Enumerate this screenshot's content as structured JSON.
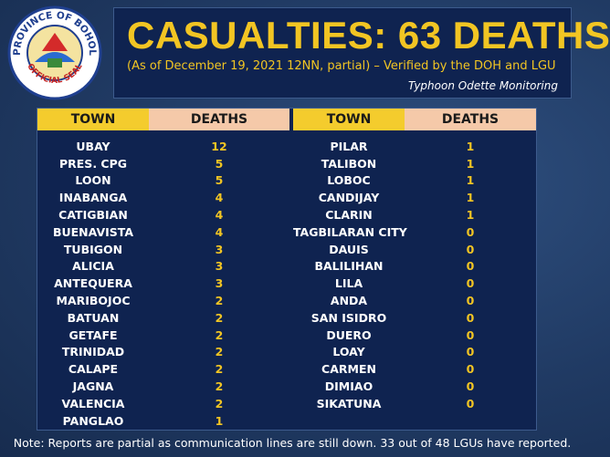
{
  "seal": {
    "top_text": "PROVINCE OF BOHOL",
    "bottom_text": "OFFICIAL SEAL"
  },
  "header": {
    "title_prefix": "CASUALTIES:",
    "title_count": "63 DEATHS",
    "subtitle": "(As of December 19, 2021 12NN, partial) – Verified by the DOH and LGU",
    "monitoring": "Typhoon Odette Monitoring"
  },
  "table": {
    "col_town": "TOWN",
    "col_deaths": "DEATHS",
    "left_rows": [
      {
        "town": "UBAY",
        "deaths": "12"
      },
      {
        "town": "PRES. CPG",
        "deaths": "5"
      },
      {
        "town": "LOON",
        "deaths": "5"
      },
      {
        "town": "INABANGA",
        "deaths": "4"
      },
      {
        "town": "CATIGBIAN",
        "deaths": "4"
      },
      {
        "town": "BUENAVISTA",
        "deaths": "4"
      },
      {
        "town": "TUBIGON",
        "deaths": "3"
      },
      {
        "town": "ALICIA",
        "deaths": "3"
      },
      {
        "town": "ANTEQUERA",
        "deaths": "3"
      },
      {
        "town": "MARIBOJOC",
        "deaths": "2"
      },
      {
        "town": "BATUAN",
        "deaths": "2"
      },
      {
        "town": "GETAFE",
        "deaths": "2"
      },
      {
        "town": "TRINIDAD",
        "deaths": "2"
      },
      {
        "town": "CALAPE",
        "deaths": "2"
      },
      {
        "town": "JAGNA",
        "deaths": "2"
      },
      {
        "town": "VALENCIA",
        "deaths": "2"
      },
      {
        "town": "PANGLAO",
        "deaths": "1"
      }
    ],
    "right_rows": [
      {
        "town": "PILAR",
        "deaths": "1"
      },
      {
        "town": "TALIBON",
        "deaths": "1"
      },
      {
        "town": "LOBOC",
        "deaths": "1"
      },
      {
        "town": "CANDIJAY",
        "deaths": "1"
      },
      {
        "town": "CLARIN",
        "deaths": "1"
      },
      {
        "town": "TAGBILARAN CITY",
        "deaths": "0"
      },
      {
        "town": "DAUIS",
        "deaths": "0"
      },
      {
        "town": "BALILIHAN",
        "deaths": "0"
      },
      {
        "town": "LILA",
        "deaths": "0"
      },
      {
        "town": "ANDA",
        "deaths": "0"
      },
      {
        "town": "SAN ISIDRO",
        "deaths": "0"
      },
      {
        "town": "DUERO",
        "deaths": "0"
      },
      {
        "town": "LOAY",
        "deaths": "0"
      },
      {
        "town": "CARMEN",
        "deaths": "0"
      },
      {
        "town": "DIMIAO",
        "deaths": "0"
      },
      {
        "town": "SIKATUNA",
        "deaths": "0"
      }
    ]
  },
  "note": "Note: Reports are partial as communication lines are still down. 33 out of  48 LGUs have reported.",
  "colors": {
    "accent_yellow": "#f2c523",
    "header_town_bg": "#f4cc2d",
    "header_deaths_bg": "#f5c9a9",
    "panel_bg": "#0f2350"
  }
}
